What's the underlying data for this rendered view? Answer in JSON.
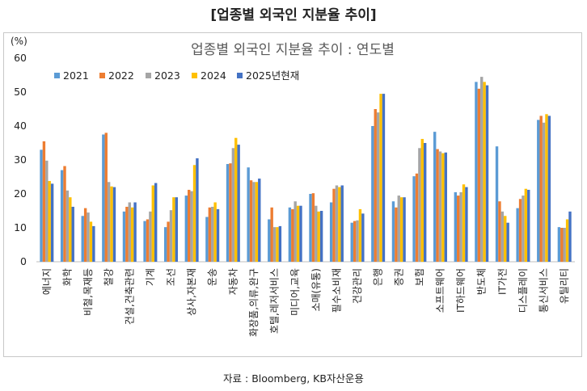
{
  "page_title": "[업종별 외국인 지분율 추이]",
  "source": "자료 : Bloomberg, KB자산운용",
  "chart_data": {
    "type": "bar",
    "title": "업종별 외국인 지분율 추이 : 연도별",
    "ylabel": "(%)",
    "xlabel": "",
    "ylim": [
      0,
      60
    ],
    "yticks": [
      0,
      10,
      20,
      30,
      40,
      50,
      60
    ],
    "grid": false,
    "legend_position": "top-left",
    "categories": [
      "에너지",
      "화학",
      "비철,목재등",
      "철강",
      "건설,건축관련",
      "기계",
      "조선",
      "상사,자본재",
      "운송",
      "자동차",
      "화장품,의류,완구",
      "호텔,레저서비스",
      "미디어,교육",
      "소매(유통)",
      "필수소비재",
      "건강관리",
      "은행",
      "증권",
      "보험",
      "소프트웨어",
      "IT하드웨어",
      "반도체",
      "IT가전",
      "디스플레이",
      "통신서비스",
      "유틸리티"
    ],
    "series": [
      {
        "name": "2021",
        "color": "#5b9bd5",
        "values": [
          33.0,
          27.0,
          13.5,
          37.5,
          14.8,
          12.0,
          10.2,
          19.5,
          13.2,
          28.8,
          27.8,
          12.5,
          16.0,
          20.0,
          17.5,
          11.5,
          40.0,
          17.8,
          25.2,
          38.3,
          20.5,
          53.0,
          34.0,
          15.8,
          41.8,
          10.2
        ]
      },
      {
        "name": "2022",
        "color": "#ed7d31",
        "values": [
          35.5,
          28.2,
          15.8,
          38.0,
          16.2,
          12.5,
          11.8,
          21.2,
          16.0,
          29.0,
          24.0,
          16.0,
          15.5,
          20.2,
          21.5,
          12.0,
          45.0,
          16.0,
          26.0,
          33.2,
          19.5,
          51.0,
          17.8,
          18.5,
          43.0,
          10.0
        ]
      },
      {
        "name": "2023",
        "color": "#a5a5a5",
        "values": [
          29.8,
          21.0,
          14.5,
          23.5,
          17.5,
          14.8,
          15.2,
          20.8,
          16.2,
          33.5,
          23.5,
          10.2,
          17.8,
          16.5,
          22.5,
          12.2,
          44.0,
          19.5,
          33.5,
          32.5,
          20.5,
          54.5,
          14.8,
          19.5,
          41.0,
          10.0
        ]
      },
      {
        "name": "2024",
        "color": "#ffc000",
        "values": [
          23.8,
          19.0,
          11.8,
          22.2,
          16.0,
          22.5,
          19.0,
          28.5,
          17.5,
          36.5,
          23.5,
          10.2,
          16.5,
          14.8,
          22.0,
          15.5,
          49.5,
          19.0,
          36.2,
          32.0,
          22.8,
          53.0,
          13.5,
          21.5,
          43.5,
          12.5
        ]
      },
      {
        "name": "2025년현재",
        "color": "#4472c4",
        "values": [
          23.0,
          16.2,
          10.5,
          22.0,
          17.5,
          23.2,
          19.0,
          30.5,
          15.5,
          34.5,
          24.5,
          10.5,
          16.5,
          15.0,
          22.5,
          14.2,
          49.5,
          19.0,
          35.0,
          32.2,
          22.0,
          52.0,
          11.5,
          21.2,
          43.0,
          14.8
        ]
      }
    ]
  }
}
